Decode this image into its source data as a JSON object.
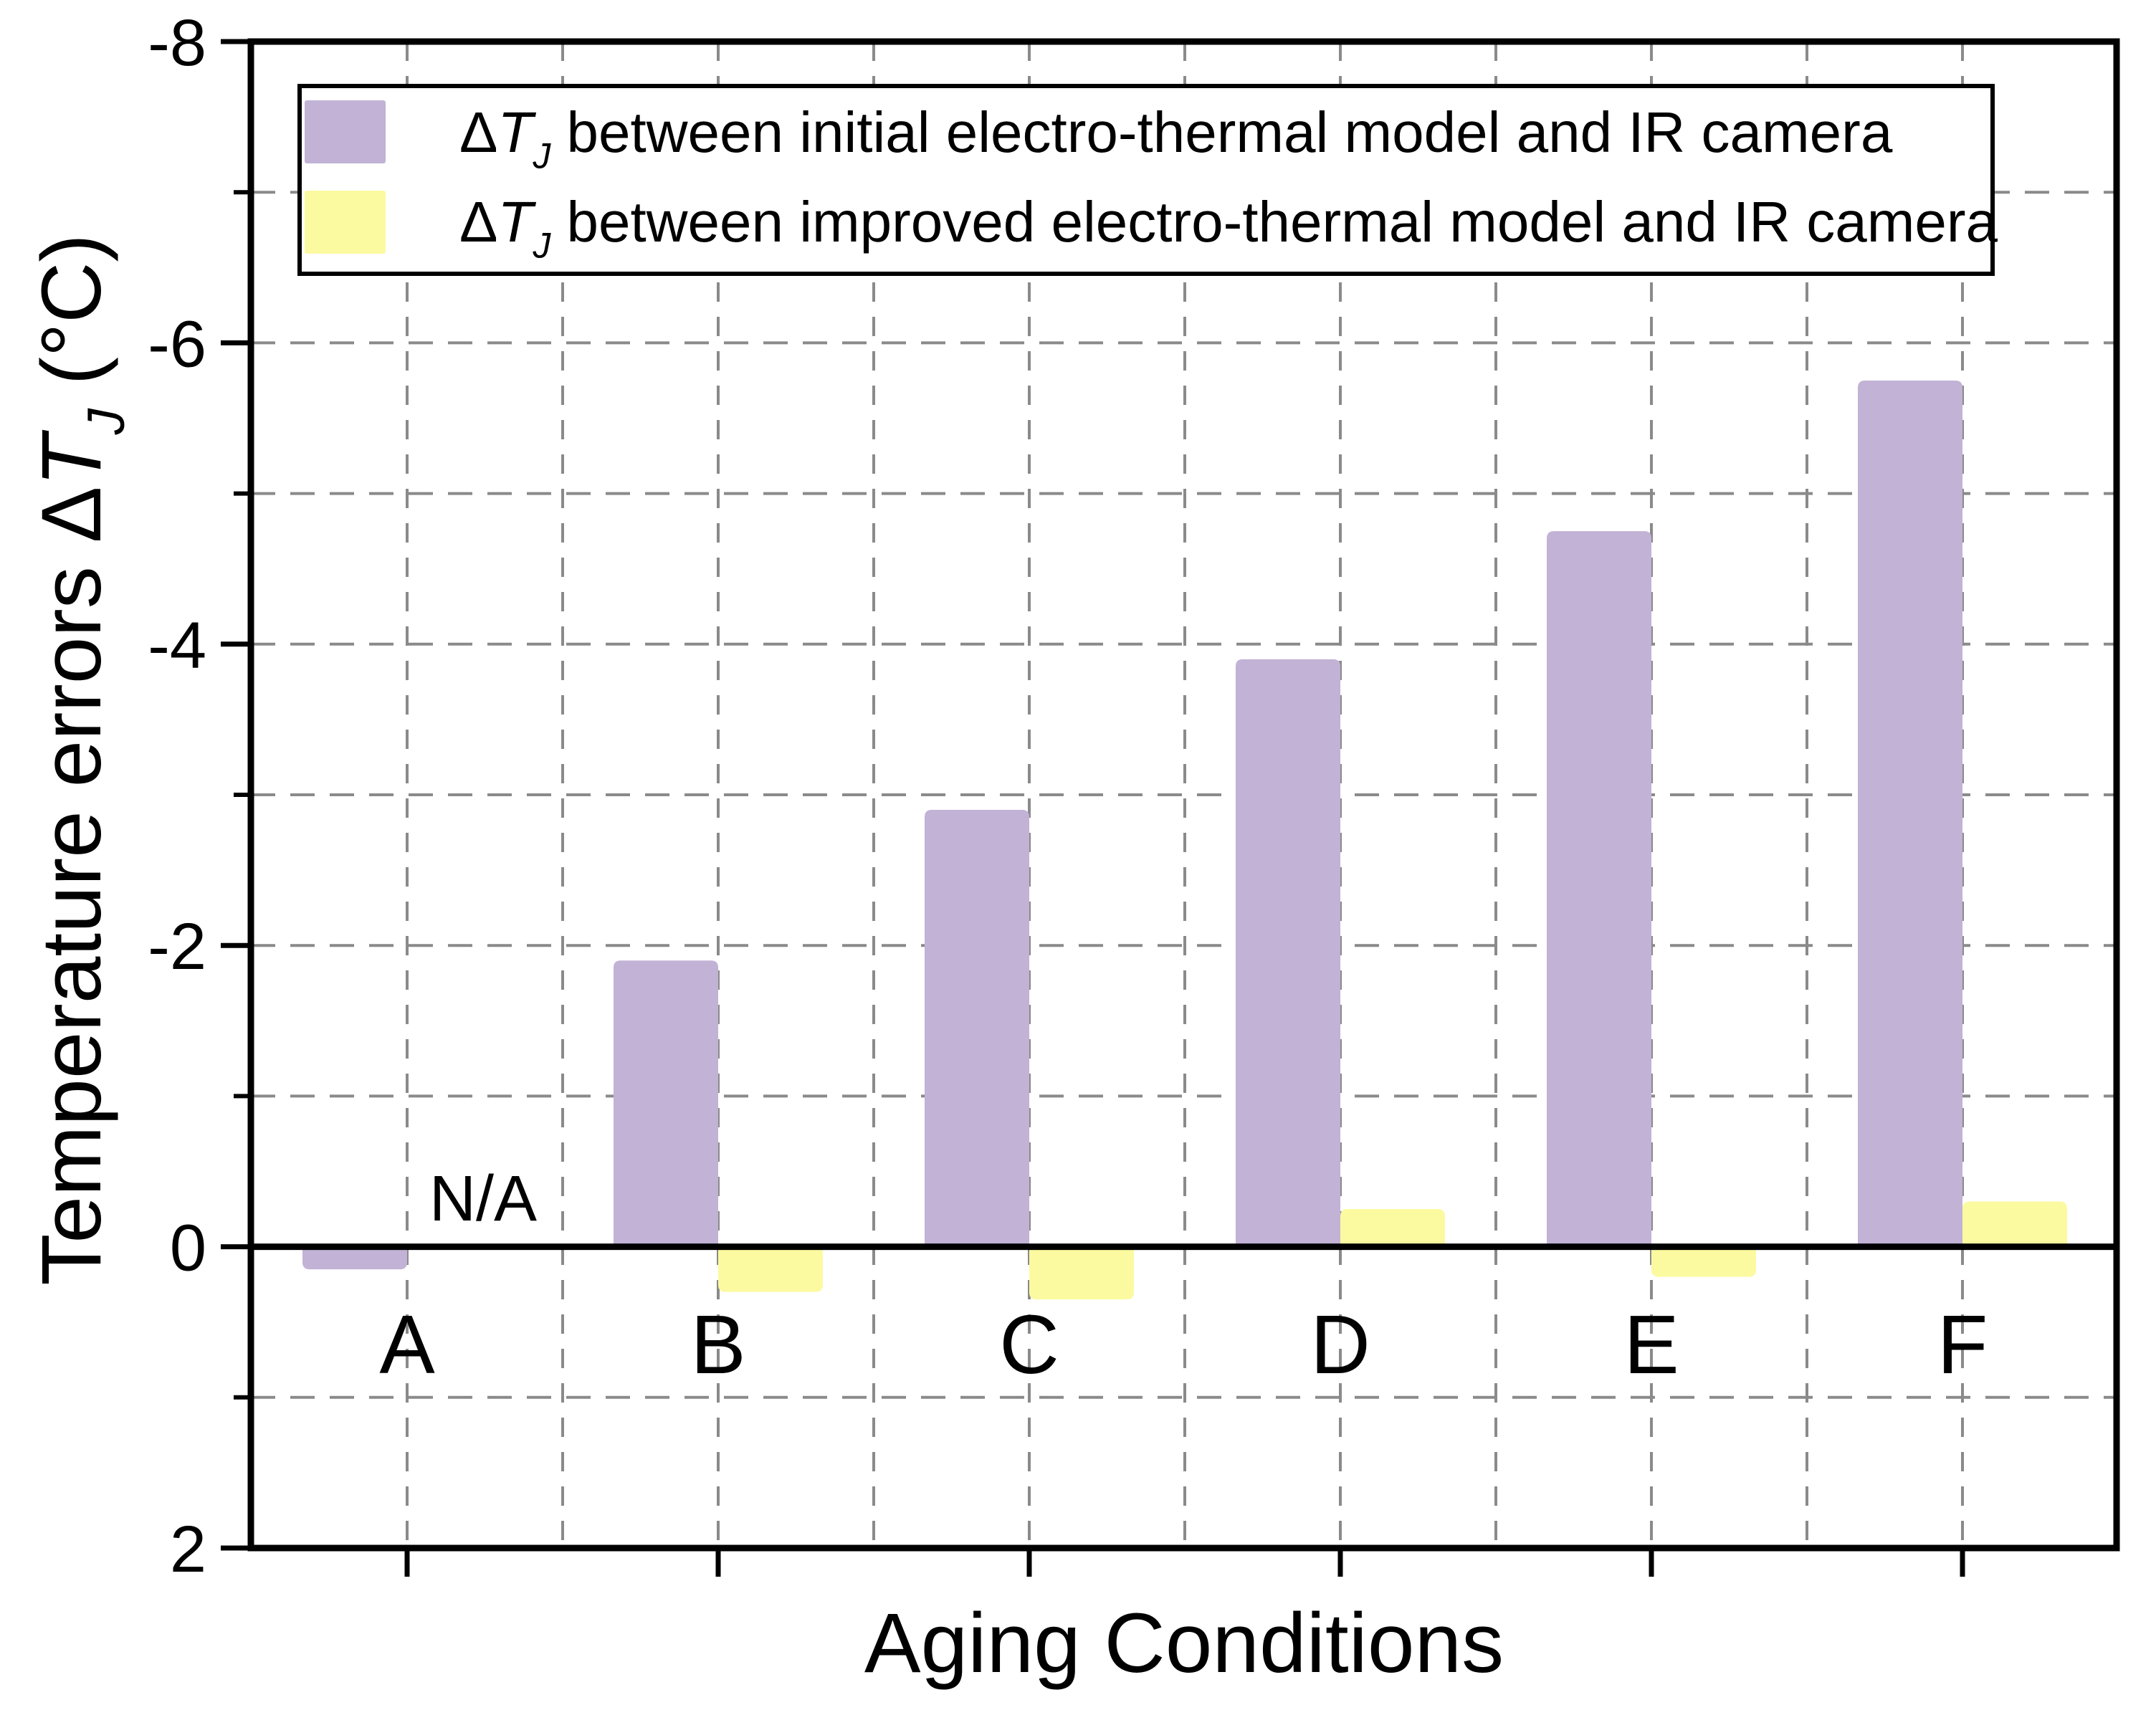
{
  "chart_data": {
    "type": "bar",
    "title": "",
    "categories": [
      "A",
      "B",
      "C",
      "D",
      "E",
      "F"
    ],
    "series": [
      {
        "name": "ΔTJ between initial electro-thermal model and IR camera",
        "label_parts": [
          {
            "t": "Δ"
          },
          {
            "t": "T",
            "style": "italic"
          },
          {
            "t": "J",
            "style": "italic",
            "script": "sub"
          },
          {
            "t": " between initial electro-thermal model and IR camera"
          }
        ],
        "color": "#c2b2d6",
        "values": [
          0.15,
          -1.9,
          -2.9,
          -3.9,
          -4.75,
          -5.75
        ]
      },
      {
        "name": "ΔTJ between improved electro-thermal model and IR camera",
        "label_parts": [
          {
            "t": "Δ"
          },
          {
            "t": "T",
            "style": "italic"
          },
          {
            "t": "J",
            "style": "italic",
            "script": "sub"
          },
          {
            "t": " between improved electro-thermal model and IR camera"
          }
        ],
        "color": "#fbfaa0",
        "values": [
          null,
          0.3,
          0.35,
          -0.25,
          0.2,
          -0.3
        ]
      }
    ],
    "annotations": [
      {
        "text": "N/A",
        "category": "A",
        "series": "improved"
      }
    ],
    "xlabel": "Aging Conditions",
    "ylabel": "Temperature errors ΔTJ (°C)",
    "ylabel_parts": [
      {
        "t": "Temperature errors Δ"
      },
      {
        "t": "T",
        "style": "italic"
      },
      {
        "t": "J",
        "style": "italic",
        "script": "sub"
      },
      {
        "t": " (°C)"
      }
    ],
    "ylim": [
      -8,
      2
    ],
    "axis_inverted_note": "negative values plotted upward, -8 at top, 2 at bottom",
    "yticks": [
      {
        "v": -8,
        "label": "-8"
      },
      {
        "v": -6,
        "label": "-6"
      },
      {
        "v": -4,
        "label": "-4"
      },
      {
        "v": -2,
        "label": "-2"
      },
      {
        "v": 0,
        "label": "0"
      },
      {
        "v": 2,
        "label": "2"
      }
    ],
    "yticks_minor": [
      -7,
      -5,
      -3,
      -1,
      1
    ],
    "grid": {
      "on": true,
      "color": "#8a8a8a",
      "style": "dashed"
    },
    "colors": {
      "axis": "#000000",
      "background": "#ffffff",
      "zero_line": "#000000"
    },
    "legend": {
      "position": "top-left-inside",
      "border_color": "#000000",
      "background": "#ffffff"
    }
  }
}
